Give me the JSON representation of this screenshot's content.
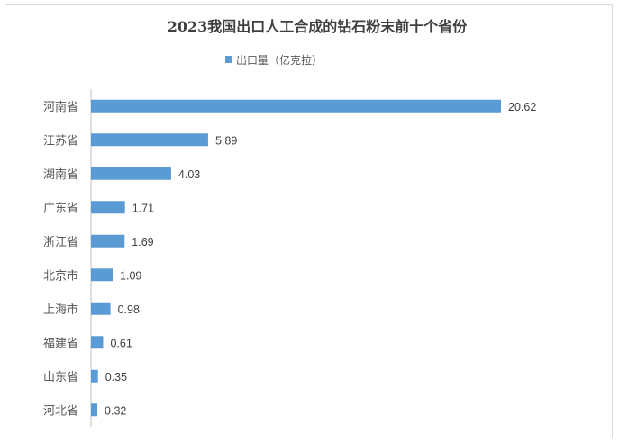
{
  "chart_data": {
    "type": "bar",
    "orientation": "horizontal",
    "title": "2023我国出口人工合成的钻石粉末前十个省份",
    "categories": [
      "河南省",
      "江苏省",
      "湖南省",
      "广东省",
      "浙江省",
      "北京市",
      "上海市",
      "福建省",
      "山东省",
      "河北省"
    ],
    "series": [
      {
        "name": "出口量（亿克拉）",
        "values": [
          20.62,
          5.89,
          4.03,
          1.71,
          1.69,
          1.09,
          0.98,
          0.61,
          0.35,
          0.32
        ],
        "labels": [
          "20.62",
          "5.89",
          "4.03",
          "1.71",
          "1.69",
          "1.09",
          "0.98",
          "0.61",
          "0.35",
          "0.32"
        ],
        "color": "#5b9bd5"
      }
    ],
    "xlim": [
      0,
      20.62
    ],
    "grid": false,
    "legend_position": "top"
  }
}
